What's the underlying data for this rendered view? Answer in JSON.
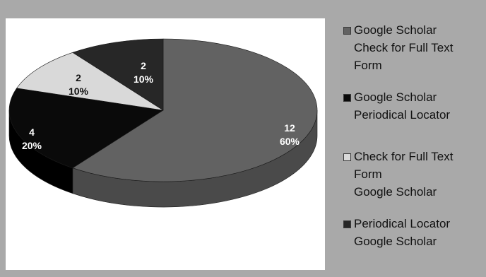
{
  "chart_data": {
    "type": "pie",
    "title": "",
    "three_d": true,
    "legend_position": "right",
    "slices": [
      {
        "name_lines": [
          "Google Scholar",
          "Check for Full Text",
          "Form"
        ],
        "value": 12,
        "percent": "60%",
        "color": "#626262",
        "side_color": "#4a4a4a",
        "label_color": "#ffffff"
      },
      {
        "name_lines": [
          "Google Scholar",
          "Periodical Locator"
        ],
        "value": 4,
        "percent": "20%",
        "color": "#0a0a0a",
        "side_color": "#000000",
        "label_color": "#ffffff"
      },
      {
        "name_lines": [
          "Check for Full Text",
          "Form",
          "Google Scholar"
        ],
        "value": 2,
        "percent": "10%",
        "color": "#d9d9d9",
        "side_color": "#b5b5b5",
        "label_color": "#111111"
      },
      {
        "name_lines": [
          "Periodical Locator",
          "Google Scholar"
        ],
        "value": 2,
        "percent": "10%",
        "color": "#272727",
        "side_color": "#151515",
        "label_color": "#ffffff"
      }
    ]
  }
}
